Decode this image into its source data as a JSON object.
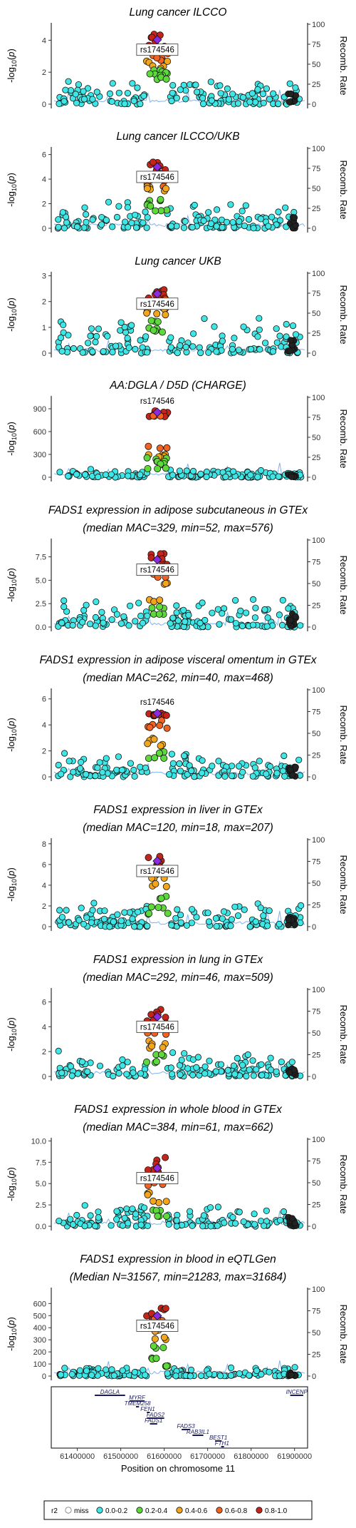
{
  "chart_data": [
    {
      "type": "scatter",
      "title": "Lung cancer ILCCO",
      "ylabel": "-log10(p)",
      "y2label": "Recomb. Rate",
      "lead_snp": "rs174546",
      "ylim": [
        0,
        5
      ],
      "yticks": [
        0,
        2,
        4
      ],
      "y2ticks": [
        0,
        25,
        50,
        75,
        100
      ],
      "label_boxed": true,
      "peak_values": [
        4.5,
        4.2,
        3.8,
        3.2,
        2.9,
        2.7,
        2.4,
        2.2,
        2.0,
        1.9,
        1.7
      ],
      "background_max": 1.8
    },
    {
      "type": "scatter",
      "title": "Lung cancer ILCCO/UKB",
      "ylabel": "-log10(p)",
      "y2label": "Recomb. Rate",
      "lead_snp": "rs174546",
      "ylim": [
        0,
        6.5
      ],
      "yticks": [
        0,
        2,
        4,
        6
      ],
      "y2ticks": [
        0,
        25,
        50,
        75,
        100
      ],
      "label_boxed": true,
      "peak_values": [
        5.5,
        5.2,
        4.8,
        4.1,
        3.7,
        3.5,
        3.3,
        2.5,
        2.0,
        1.5
      ],
      "background_max": 2.3
    },
    {
      "type": "scatter",
      "title": "Lung cancer UKB",
      "ylabel": "-log10(p)",
      "y2label": "Recomb. Rate",
      "lead_snp": "rs174546",
      "ylim": [
        0,
        3.1
      ],
      "yticks": [
        0,
        1,
        2,
        3
      ],
      "y2ticks": [
        0,
        25,
        50,
        75,
        100
      ],
      "label_boxed": true,
      "peak_values": [
        2.5,
        2.4,
        2.3,
        2.1,
        1.9,
        1.8,
        1.6,
        1.3,
        1.0,
        0.9
      ],
      "background_max": 1.5
    },
    {
      "type": "scatter",
      "title": "AA:DGLA / D5D (CHARGE)",
      "ylabel": "-log10(p)",
      "y2label": "Recomb. Rate",
      "lead_snp": "rs174546",
      "ylim": [
        0,
        1050
      ],
      "yticks": [
        0,
        300,
        600,
        900
      ],
      "y2ticks": [
        0,
        25,
        50,
        75,
        100
      ],
      "label_boxed": false,
      "peak_values": [
        900,
        890,
        880,
        870,
        420,
        300,
        280,
        260,
        220,
        180,
        120
      ],
      "background_max": 110
    },
    {
      "type": "scatter",
      "title": "FADS1 expression in adipose subcutaneous in GTEx",
      "subtitle": "(median MAC=329, min=52, max=576)",
      "ylabel": "-log10(p)",
      "y2label": "Recomb. Rate",
      "lead_snp": "rs174546",
      "ylim": [
        0,
        9.3
      ],
      "yticks": [
        0,
        2.5,
        5.0,
        7.5
      ],
      "y2ticks": [
        0,
        25,
        50,
        75,
        100
      ],
      "label_boxed": true,
      "peak_values": [
        7.9,
        7.5,
        7.0,
        6.2,
        5.8,
        5.0,
        3.0,
        2.2,
        1.5
      ],
      "background_max": 3.6
    },
    {
      "type": "scatter",
      "title": "FADS1 expression in adipose visceral omentum in GTEx",
      "subtitle": "(median MAC=262, min=40, max=468)",
      "ylabel": "-log10(p)",
      "y2label": "Recomb. Rate",
      "lead_snp": "rs174546",
      "ylim": [
        0,
        6.7
      ],
      "yticks": [
        0,
        2,
        4,
        6
      ],
      "y2ticks": [
        0,
        25,
        50,
        75,
        100
      ],
      "label_boxed": false,
      "peak_values": [
        5.3,
        5.1,
        4.9,
        4.4,
        4.0,
        3.0,
        2.6,
        2.0,
        1.5
      ],
      "background_max": 2.0
    },
    {
      "type": "scatter",
      "title": "FADS1 expression in liver in GTEx",
      "subtitle": "(median MAC=120, min=18, max=207)",
      "ylabel": "-log10(p)",
      "y2label": "Recomb. Rate",
      "lead_snp": "rs174546",
      "ylim": [
        0,
        8.4
      ],
      "yticks": [
        0,
        2,
        4,
        6,
        8
      ],
      "y2ticks": [
        0,
        25,
        50,
        75,
        100
      ],
      "label_boxed": true,
      "peak_values": [
        6.8,
        6.6,
        6.3,
        5.8,
        5.5,
        4.9,
        4.2,
        3.0,
        2.0,
        1.3
      ],
      "background_max": 2.7
    },
    {
      "type": "scatter",
      "title": "FADS1 expression in lung in GTEx",
      "subtitle": "(median MAC=292, min=46, max=509)",
      "ylabel": "-log10(p)",
      "y2label": "Recomb. Rate",
      "lead_snp": "rs174546",
      "ylim": [
        0,
        7.0
      ],
      "yticks": [
        0,
        2,
        4,
        6
      ],
      "y2ticks": [
        0,
        25,
        50,
        75,
        100
      ],
      "label_boxed": true,
      "peak_values": [
        5.5,
        5.0,
        4.6,
        4.1,
        3.5,
        2.9,
        2.5,
        1.8,
        1.2
      ],
      "background_max": 2.2
    },
    {
      "type": "scatter",
      "title": "FADS1 expression in whole blood in GTEx",
      "subtitle": "(median MAC=384, min=61, max=662)",
      "ylabel": "-log10(p)",
      "y2label": "Recomb. Rate",
      "lead_snp": "rs174546",
      "ylim": [
        0,
        10.2
      ],
      "yticks": [
        0,
        2.5,
        5.0,
        7.5,
        10.0
      ],
      "y2ticks": [
        0,
        25,
        50,
        75,
        100
      ],
      "label_boxed": true,
      "peak_values": [
        8.1,
        7.1,
        6.4,
        6.0,
        5.2,
        4.0,
        3.0,
        2.0,
        1.2
      ],
      "background_max": 3.0
    },
    {
      "type": "scatter",
      "title": "FADS1 expression in blood in eQTLGen",
      "subtitle": "(Median N=31567, min=21283, max=31684)",
      "ylabel": "-log10(p)",
      "y2label": "Recomb. Rate",
      "lead_snp": "rs174546",
      "ylim": [
        0,
        720
      ],
      "yticks": [
        0,
        100,
        200,
        300,
        400,
        500,
        600
      ],
      "y2ticks": [
        0,
        25,
        50,
        75,
        100
      ],
      "label_boxed": true,
      "peak_values": [
        600,
        520,
        500,
        480,
        450,
        400,
        320,
        250,
        150,
        90
      ],
      "background_max": 80
    }
  ],
  "x_axis": {
    "label": "Position on chromosome 11",
    "range": [
      61340000,
      61930000
    ],
    "ticks": [
      "61400000",
      "61500000",
      "61600000",
      "61700000",
      "61800000",
      "61900000"
    ],
    "tick_values": [
      61400000,
      61500000,
      61600000,
      61700000,
      61800000,
      61900000
    ]
  },
  "lead_position": 61584000,
  "genes": [
    {
      "name": "DAGLA",
      "start": 61440000,
      "end": 61510000,
      "row": 0
    },
    {
      "name": "MYRF",
      "start": 61520000,
      "end": 61555000,
      "row": 1
    },
    {
      "name": "TMEM258",
      "start": 61535000,
      "end": 61542000,
      "row": 2
    },
    {
      "name": "FEN1",
      "start": 61560000,
      "end": 61564000,
      "row": 3
    },
    {
      "name": "FADS2",
      "start": 61560000,
      "end": 61600000,
      "row": 4
    },
    {
      "name": "FADS1",
      "start": 61567000,
      "end": 61584000,
      "row": 5
    },
    {
      "name": "FADS3",
      "start": 61640000,
      "end": 61660000,
      "row": 6
    },
    {
      "name": "RAB3IL1",
      "start": 61665000,
      "end": 61690000,
      "row": 7
    },
    {
      "name": "BEST1",
      "start": 61717000,
      "end": 61732000,
      "row": 8
    },
    {
      "name": "FTH1",
      "start": 61731000,
      "end": 61735000,
      "row": 9
    },
    {
      "name": "INCENP",
      "start": 61890000,
      "end": 61920000,
      "row": 0
    }
  ],
  "legend": {
    "title": "r2",
    "items": [
      {
        "label": "miss",
        "color": "#bbbbbb"
      },
      {
        "label": "0.0-0.2",
        "color": "#3ee6e6"
      },
      {
        "label": "0.2-0.4",
        "color": "#5ed93c"
      },
      {
        "label": "0.4-0.6",
        "color": "#f3a61b"
      },
      {
        "label": "0.6-0.8",
        "color": "#f26322"
      },
      {
        "label": "0.8-1.0",
        "color": "#c4251b"
      }
    ],
    "lead_color": "#8a2be2",
    "recomb_line_color": "#7fb3f0"
  }
}
